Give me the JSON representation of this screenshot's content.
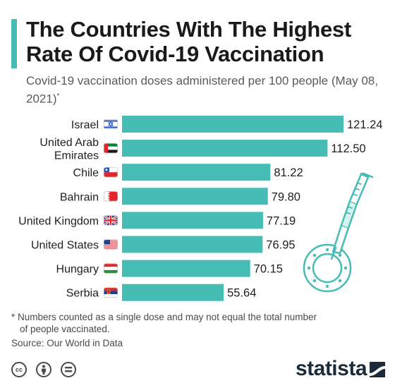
{
  "header": {
    "title": "The Countries With The Highest Rate Of Covid-19 Vaccination",
    "subtitle": "Covid-19 vaccination doses administered per 100 people (May 08, 2021)",
    "subtitle_mark": "*"
  },
  "colors": {
    "accent": "#45bdb5",
    "bar": "#45bdb5",
    "text": "#1f1f1f",
    "brand": "#1b2b3a"
  },
  "chart_data": {
    "type": "bar",
    "orientation": "horizontal",
    "categories": [
      "Israel",
      "United Arab Emirates",
      "Chile",
      "Bahrain",
      "United Kingdom",
      "United States",
      "Hungary",
      "Serbia"
    ],
    "category_lines": [
      [
        "Israel"
      ],
      [
        "United Arab",
        "Emirates"
      ],
      [
        "Chile"
      ],
      [
        "Bahrain"
      ],
      [
        "United Kingdom"
      ],
      [
        "United States"
      ],
      [
        "Hungary"
      ],
      [
        "Serbia"
      ]
    ],
    "values": [
      121.24,
      112.5,
      81.22,
      79.8,
      77.19,
      76.95,
      70.15,
      55.64
    ],
    "value_labels": [
      "121.24",
      "112.50",
      "81.22",
      "79.80",
      "77.19",
      "76.95",
      "70.15",
      "55.64"
    ],
    "flag_icons": [
      "israel-flag-icon",
      "uae-flag-icon",
      "chile-flag-icon",
      "bahrain-flag-icon",
      "uk-flag-icon",
      "us-flag-icon",
      "hungary-flag-icon",
      "serbia-flag-icon"
    ],
    "xlim": [
      0,
      121.24
    ]
  },
  "footer": {
    "footnote_line1": "* Numbers counted as a single dose and may not equal the total number",
    "footnote_line2": "of people vaccinated.",
    "source": "Source: Our World in Data",
    "license_icons": [
      "cc-icon",
      "attribution-icon",
      "no-derivatives-icon"
    ],
    "license_cc_text": "cc",
    "brand": "statista"
  }
}
